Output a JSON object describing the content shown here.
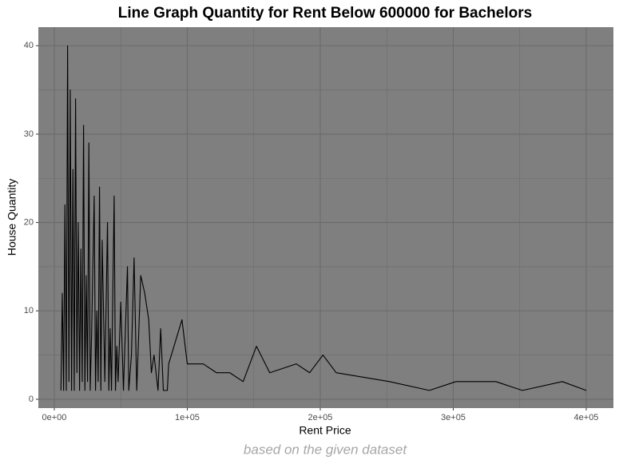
{
  "chart_data": {
    "type": "line",
    "title": "Line Graph Quantity for Rent Below 600000 for Bachelors",
    "x_label": "Rent Price",
    "y_label": "House Quantity",
    "caption": "based on the given dataset",
    "x": [
      5000,
      6000,
      7000,
      8000,
      9000,
      10000,
      11000,
      12000,
      13000,
      14000,
      15000,
      16000,
      17000,
      18000,
      19000,
      20000,
      21000,
      22000,
      23000,
      24000,
      25000,
      26000,
      27000,
      28000,
      30000,
      31000,
      32000,
      33000,
      34000,
      35000,
      36000,
      38000,
      40000,
      41000,
      42000,
      43000,
      45000,
      46000,
      47000,
      48000,
      50000,
      52000,
      55000,
      56000,
      58000,
      60000,
      62000,
      65000,
      68000,
      71000,
      73000,
      75000,
      78000,
      80000,
      82000,
      85000,
      86000,
      96000,
      100000,
      112000,
      122000,
      132000,
      142000,
      152000,
      162000,
      182000,
      192000,
      202000,
      212000,
      252000,
      282000,
      302000,
      332000,
      352000,
      382000,
      400000
    ],
    "series": [
      {
        "name": "Quantity",
        "color": "#000000",
        "values": [
          1,
          12,
          1,
          22,
          1,
          40,
          2,
          35,
          1,
          26,
          1,
          34,
          3,
          20,
          1,
          17,
          2,
          31,
          1,
          14,
          2,
          29,
          1,
          7,
          23,
          1,
          10,
          2,
          24,
          1,
          18,
          2,
          20,
          1,
          8,
          1,
          23,
          1,
          6,
          2,
          11,
          1,
          15,
          1,
          5,
          16,
          1,
          14,
          12,
          9,
          3,
          5,
          1,
          8,
          1,
          1,
          4,
          9,
          4,
          4,
          3,
          3,
          2,
          6,
          3,
          4,
          3,
          5,
          3,
          2,
          1,
          2,
          2,
          1,
          2,
          1
        ]
      }
    ],
    "xlim": [
      -12000,
      420420
    ],
    "ylim": [
      -1,
      42.1
    ],
    "xticks": [
      {
        "value": 0,
        "label": "0e+00"
      },
      {
        "value": 100000,
        "label": "1e+05"
      },
      {
        "value": 200000,
        "label": "2e+05"
      },
      {
        "value": 300000,
        "label": "3e+05"
      },
      {
        "value": 400000,
        "label": "4e+05"
      }
    ],
    "yticks": [
      0,
      10,
      20,
      30,
      40
    ],
    "minor_xticks": [
      50000,
      150000,
      250000,
      350000
    ],
    "minor_yticks": [
      5,
      15,
      25,
      35
    ],
    "grid": true,
    "panel_color": "#7f7f7f",
    "grid_color": "#6b6b6b"
  }
}
